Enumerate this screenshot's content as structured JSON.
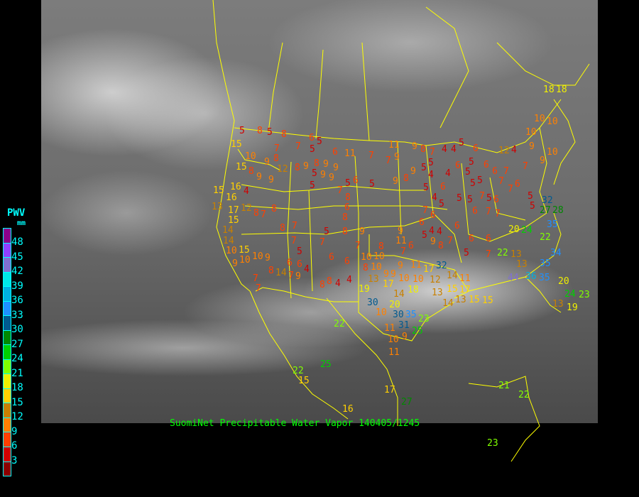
{
  "caption": "SuomiNet Precipitable Water Vapor 140405/1245",
  "legend": {
    "title": "PWV",
    "unit": "mm",
    "labels": [
      "48",
      "45",
      "42",
      "39",
      "36",
      "33",
      "30",
      "27",
      "24",
      "21",
      "18",
      "15",
      "12",
      "9",
      "6",
      "3"
    ],
    "colors": [
      "#8b008b",
      "#9040ff",
      "#8070d0",
      "#00e8e8",
      "#00b0e0",
      "#1e90ff",
      "#005a90",
      "#008800",
      "#00d000",
      "#80ff00",
      "#f0f000",
      "#ffd000",
      "#c88000",
      "#ff8000",
      "#ff4000",
      "#d00000",
      "#8b0000"
    ]
  },
  "stations": [
    5,
    8,
    5,
    8,
    6,
    5,
    7,
    7,
    5,
    6,
    11,
    7,
    11,
    9,
    8,
    7,
    4,
    4,
    5,
    6,
    5,
    5,
    4,
    6,
    5,
    5,
    6,
    6,
    7,
    7,
    9,
    10,
    9,
    4,
    12,
    10,
    10,
    10,
    5,
    6,
    7,
    8,
    6,
    8,
    5,
    8,
    9,
    7,
    6,
    7,
    8,
    6,
    4,
    4,
    8,
    4,
    6,
    6,
    5,
    7,
    7,
    8,
    7,
    8,
    8,
    12,
    17,
    4,
    8,
    9,
    9,
    12,
    9,
    10,
    8,
    8,
    9,
    8,
    5,
    9,
    9,
    5,
    9,
    9,
    5,
    9,
    9,
    7,
    8,
    9,
    5,
    4,
    4,
    6,
    5,
    5,
    5,
    5,
    5,
    7,
    6,
    7,
    5,
    6,
    7,
    7,
    7,
    5,
    5,
    6,
    6,
    6,
    4,
    6,
    4,
    9,
    5,
    6,
    7,
    6,
    8,
    7,
    5,
    7,
    6,
    20,
    24,
    22,
    13,
    13,
    22,
    27,
    28,
    32,
    35,
    34,
    35,
    36,
    35,
    44,
    15,
    17,
    15,
    32,
    14,
    15,
    13,
    13,
    14,
    18,
    14,
    17,
    20,
    30,
    30,
    31,
    35,
    23,
    25,
    9,
    11,
    10,
    10,
    9,
    9,
    9,
    11,
    17,
    12,
    11,
    10,
    10,
    11,
    7,
    9,
    10,
    10,
    8,
    8,
    13,
    19,
    10,
    11,
    17,
    22,
    25,
    22,
    15,
    16,
    27,
    23,
    21,
    22,
    20,
    24,
    23,
    13,
    19,
    18,
    18,
    15,
    15,
    16,
    15,
    13,
    16,
    15,
    14,
    14,
    10,
    15,
    9,
    10,
    10,
    9,
    8,
    7,
    7,
    14,
    7,
    9
  ],
  "map_colors": {
    "borders": "#ffff00",
    "caption": "#00ff00",
    "legend_text": "#00ffff"
  }
}
